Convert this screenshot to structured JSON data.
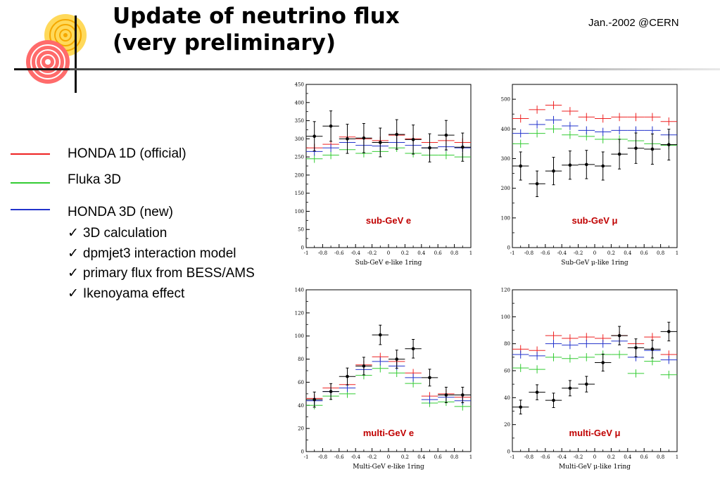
{
  "slide": {
    "title_line1": "Update of neutrino flux",
    "title_line2": "(very preliminary)",
    "date": "Jan.-2002 @CERN"
  },
  "colors": {
    "honda1d": "#ee2222",
    "fluka3d": "#33cc33",
    "honda3d": "#2233cc",
    "data": "#000000",
    "panel_label": "#c00000"
  },
  "legend": {
    "items": [
      {
        "label": "HONDA 1D (official)",
        "color": "#ee2222"
      },
      {
        "label": "Fluka 3D",
        "color": "#33cc33"
      },
      {
        "label": "HONDA 3D (new)",
        "color": "#2233cc"
      }
    ],
    "bullets": [
      "3D calculation",
      "dpmjet3 interaction model",
      "primary flux from BESS/AMS",
      "Ikenoyama effect"
    ]
  },
  "chart_data": [
    {
      "type": "scatter",
      "label": "sub-GeV e",
      "xlabel": "Sub-GeV e-like 1ring",
      "ylabel": "",
      "xlim": [
        -1,
        1
      ],
      "ylim": [
        0,
        450
      ],
      "xticks": [
        -1,
        -0.8,
        -0.6,
        -0.4,
        -0.2,
        0,
        0.2,
        0.4,
        0.6,
        0.8,
        1
      ],
      "yticks": [
        0,
        50,
        100,
        150,
        200,
        250,
        300,
        350,
        400,
        450
      ],
      "x": [
        -0.9,
        -0.7,
        -0.5,
        -0.3,
        -0.1,
        0.1,
        0.3,
        0.5,
        0.7,
        0.9
      ],
      "series": [
        {
          "values": [
            275,
            285,
            305,
            300,
            295,
            310,
            300,
            290,
            295,
            290
          ]
        },
        {
          "values": [
            245,
            255,
            270,
            260,
            265,
            275,
            260,
            255,
            255,
            250
          ]
        },
        {
          "values": [
            265,
            275,
            290,
            282,
            280,
            290,
            282,
            275,
            278,
            275
          ]
        },
        {
          "values": [
            307,
            335,
            300,
            302,
            290,
            312,
            298,
            275,
            310,
            277
          ]
        }
      ]
    },
    {
      "type": "scatter",
      "label": "sub-GeV μ",
      "xlabel": "Sub-GeV μ-like 1ring",
      "ylabel": "",
      "xlim": [
        -1,
        1
      ],
      "ylim": [
        0,
        550
      ],
      "xticks": [
        -1,
        -0.8,
        -0.6,
        -0.4,
        -0.2,
        0,
        0.2,
        0.4,
        0.6,
        0.8,
        1
      ],
      "yticks": [
        0,
        100,
        200,
        300,
        400,
        500
      ],
      "x": [
        -0.9,
        -0.7,
        -0.5,
        -0.3,
        -0.1,
        0.1,
        0.3,
        0.5,
        0.7,
        0.9
      ],
      "series": [
        {
          "values": [
            435,
            465,
            480,
            460,
            440,
            435,
            440,
            440,
            440,
            425
          ]
        },
        {
          "values": [
            350,
            385,
            400,
            380,
            375,
            365,
            365,
            360,
            350,
            345
          ]
        },
        {
          "values": [
            385,
            415,
            430,
            410,
            395,
            390,
            395,
            395,
            395,
            380
          ]
        },
        {
          "values": [
            275,
            215,
            258,
            278,
            280,
            275,
            315,
            335,
            332,
            347
          ]
        }
      ]
    },
    {
      "type": "scatter",
      "label": "multi-GeV e",
      "xlabel": "Multi-GeV e-like 1ring",
      "ylabel": "",
      "xlim": [
        -1,
        1
      ],
      "ylim": [
        0,
        140
      ],
      "xticks": [
        -1,
        -0.8,
        -0.6,
        -0.4,
        -0.2,
        0,
        0.2,
        0.4,
        0.6,
        0.8,
        1
      ],
      "yticks": [
        0,
        20,
        40,
        60,
        80,
        100,
        120,
        140
      ],
      "x": [
        -0.9,
        -0.7,
        -0.5,
        -0.3,
        -0.1,
        0.1,
        0.3,
        0.5,
        0.7,
        0.9
      ],
      "series": [
        {
          "values": [
            46,
            55,
            58,
            75,
            82,
            78,
            68,
            48,
            50,
            47
          ]
        },
        {
          "values": [
            40,
            48,
            50,
            66,
            72,
            68,
            59,
            42,
            43,
            39
          ]
        },
        {
          "values": [
            44,
            52,
            55,
            71,
            78,
            74,
            64,
            45,
            47,
            44
          ]
        },
        {
          "values": [
            45,
            52,
            65,
            74,
            101,
            80,
            89,
            64,
            49,
            49
          ]
        }
      ]
    },
    {
      "type": "scatter",
      "label": "multi-GeV μ",
      "xlabel": "Multi-GeV μ-like 1ring",
      "ylabel": "",
      "xlim": [
        -1,
        1
      ],
      "ylim": [
        0,
        120
      ],
      "xticks": [
        -1,
        -0.8,
        -0.6,
        -0.4,
        -0.2,
        0,
        0.2,
        0.4,
        0.6,
        0.8,
        1
      ],
      "yticks": [
        0,
        20,
        40,
        60,
        80,
        100,
        120
      ],
      "x": [
        -0.9,
        -0.7,
        -0.5,
        -0.3,
        -0.1,
        0.1,
        0.3,
        0.5,
        0.7,
        0.9
      ],
      "series": [
        {
          "values": [
            76,
            75,
            86,
            84,
            85,
            84,
            86,
            80,
            85,
            72
          ]
        },
        {
          "values": [
            62,
            61,
            70,
            69,
            70,
            72,
            72,
            58,
            67,
            57
          ]
        },
        {
          "values": [
            72,
            71,
            80,
            79,
            80,
            80,
            82,
            70,
            75,
            68
          ]
        },
        {
          "values": [
            33,
            44,
            38,
            47,
            50,
            66,
            86,
            77,
            76,
            89
          ]
        }
      ]
    }
  ]
}
